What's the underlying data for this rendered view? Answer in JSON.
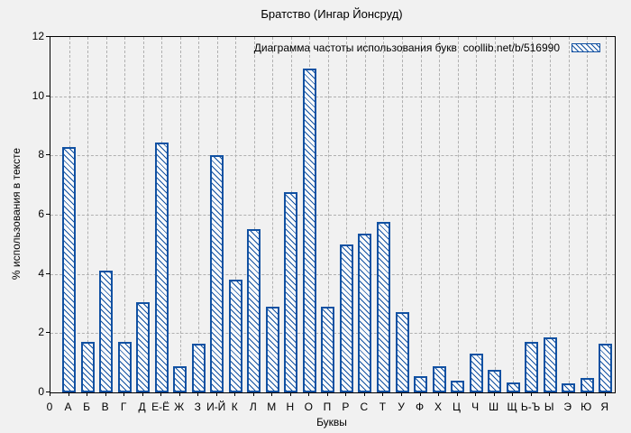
{
  "page": {
    "background": "#f1f1f1"
  },
  "chart_data": {
    "type": "bar",
    "title": "Братство (Ингар Йонсруд)",
    "legend_label": "Диаграмма частоты использования букв  coollib.net/b/516990",
    "legend_position": "top-right-inside",
    "xlabel": "Буквы",
    "ylabel": "% использования в тексте",
    "origin_label": "0",
    "ylim": [
      0,
      12
    ],
    "yticks": [
      0,
      2,
      4,
      6,
      8,
      10,
      12
    ],
    "grid": true,
    "hatch": "diagonal-left",
    "categories": [
      "А",
      "Б",
      "В",
      "Г",
      "Д",
      "Е-Ё",
      "Ж",
      "З",
      "И-Й",
      "К",
      "Л",
      "М",
      "Н",
      "О",
      "П",
      "Р",
      "С",
      "Т",
      "У",
      "Ф",
      "Х",
      "Ц",
      "Ч",
      "Ш",
      "Щ",
      "Ь-Ъ",
      "Ы",
      "Э",
      "Ю",
      "Я"
    ],
    "values": [
      8.3,
      1.7,
      4.1,
      1.7,
      3.05,
      8.45,
      0.9,
      1.65,
      8.0,
      3.8,
      5.5,
      2.9,
      6.75,
      10.95,
      2.9,
      5.0,
      5.35,
      5.75,
      2.7,
      0.55,
      0.9,
      0.4,
      1.3,
      0.75,
      0.35,
      1.7,
      1.85,
      0.3,
      0.5,
      1.65
    ],
    "colors": {
      "bar_outline": "#1151a2",
      "bar_fill": "#fbfbfb",
      "grid_line": "#b0b0b0",
      "axis": "#000000",
      "background": "#f1f1f1",
      "text": "#000000"
    }
  }
}
